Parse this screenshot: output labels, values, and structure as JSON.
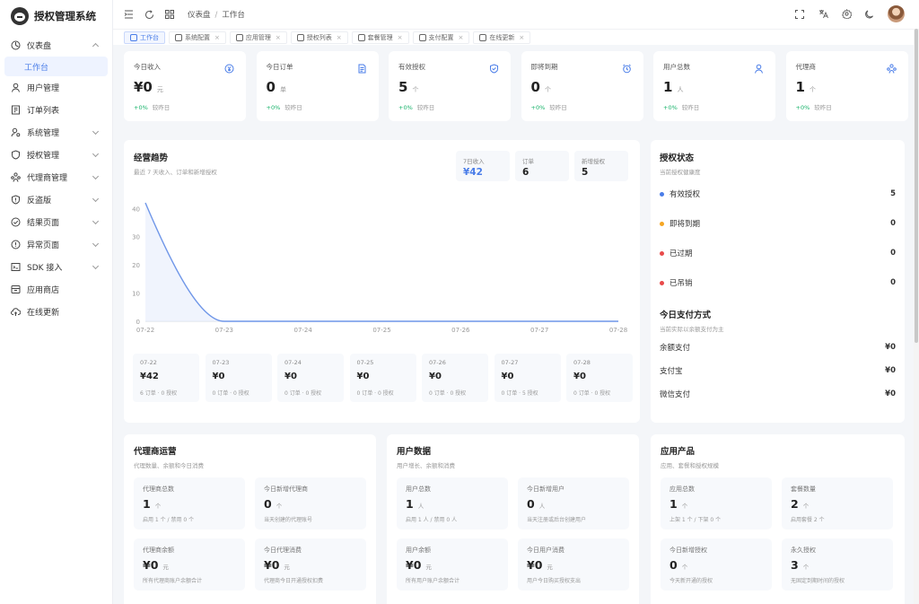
{
  "app": {
    "title": "授权管理系统"
  },
  "sidebar": {
    "items": [
      {
        "label": "仪表盘",
        "icon": "dashboard-icon",
        "expanded": true
      },
      {
        "label": "用户管理",
        "icon": "user-icon"
      },
      {
        "label": "订单列表",
        "icon": "order-icon"
      },
      {
        "label": "系统管理",
        "icon": "user-gear-icon",
        "expandable": true
      },
      {
        "label": "授权管理",
        "icon": "shield-icon",
        "expandable": true
      },
      {
        "label": "代理商管理",
        "icon": "agents-icon",
        "expandable": true
      },
      {
        "label": "反盗版",
        "icon": "shield-alert-icon",
        "expandable": true
      },
      {
        "label": "结果页面",
        "icon": "check-circle-icon",
        "expandable": true
      },
      {
        "label": "异常页面",
        "icon": "warning-circle-icon",
        "expandable": true
      },
      {
        "label": "SDK 接入",
        "icon": "sdk-icon",
        "expandable": true
      },
      {
        "label": "应用商店",
        "icon": "store-icon"
      },
      {
        "label": "在线更新",
        "icon": "cloud-icon"
      }
    ],
    "sub_active": "工作台"
  },
  "header": {
    "breadcrumb": [
      "仪表盘",
      "工作台"
    ]
  },
  "tabs": [
    {
      "label": "工作台",
      "active": true
    },
    {
      "label": "系统配置"
    },
    {
      "label": "应用管理"
    },
    {
      "label": "授权列表"
    },
    {
      "label": "套餐管理"
    },
    {
      "label": "支付配置"
    },
    {
      "label": "在线更新"
    }
  ],
  "stats": [
    {
      "label": "今日收入",
      "value": "¥0",
      "unit": "元",
      "trend": "+0%",
      "trend_label": "较昨日",
      "icon": "coin-icon"
    },
    {
      "label": "今日订单",
      "value": "0",
      "unit": "单",
      "trend": "+0%",
      "trend_label": "较昨日",
      "icon": "document-icon"
    },
    {
      "label": "有效授权",
      "value": "5",
      "unit": "个",
      "trend": "+0%",
      "trend_label": "较昨日",
      "icon": "shield-check-icon"
    },
    {
      "label": "即将到期",
      "value": "0",
      "unit": "个",
      "trend": "+0%",
      "trend_label": "较昨日",
      "icon": "alarm-icon"
    },
    {
      "label": "用户总数",
      "value": "1",
      "unit": "人",
      "trend": "+0%",
      "trend_label": "较昨日",
      "icon": "person-icon"
    },
    {
      "label": "代理商",
      "value": "1",
      "unit": "个",
      "trend": "+0%",
      "trend_label": "较昨日",
      "icon": "team-icon"
    }
  ],
  "trend": {
    "title": "经营趋势",
    "subtitle": "最近 7 天收入、订单和新增授权",
    "summary": [
      {
        "label": "7日收入",
        "value": "¥42",
        "highlight": true
      },
      {
        "label": "订单",
        "value": "6"
      },
      {
        "label": "新增授权",
        "value": "5"
      }
    ],
    "days": [
      {
        "date": "07-22",
        "value": "¥42",
        "meta": "6 订单 · 0 授权"
      },
      {
        "date": "07-23",
        "value": "¥0",
        "meta": "0 订单 · 0 授权"
      },
      {
        "date": "07-24",
        "value": "¥0",
        "meta": "0 订单 · 0 授权"
      },
      {
        "date": "07-25",
        "value": "¥0",
        "meta": "0 订单 · 0 授权"
      },
      {
        "date": "07-26",
        "value": "¥0",
        "meta": "0 订单 · 0 授权"
      },
      {
        "date": "07-27",
        "value": "¥0",
        "meta": "0 订单 · 5 授权"
      },
      {
        "date": "07-28",
        "value": "¥0",
        "meta": "0 订单 · 0 授权"
      }
    ]
  },
  "chart_data": {
    "type": "area",
    "x": [
      "07-22",
      "07-23",
      "07-24",
      "07-25",
      "07-26",
      "07-27",
      "07-28"
    ],
    "series": [
      {
        "values": [
          42,
          0,
          0,
          0,
          0,
          0,
          0
        ]
      }
    ],
    "yticks": [
      0,
      10,
      20,
      30,
      40
    ],
    "ylim": [
      0,
      42
    ],
    "color": "#6f96e8",
    "grid": false
  },
  "auth_status": {
    "title": "授权状态",
    "subtitle": "当前授权健康度",
    "items": [
      {
        "label": "有效授权",
        "value": "5",
        "color": "#4a7de8"
      },
      {
        "label": "即将到期",
        "value": "0",
        "color": "#f5a623"
      },
      {
        "label": "已过期",
        "value": "0",
        "color": "#e84a4a"
      },
      {
        "label": "已吊销",
        "value": "0",
        "color": "#e84a4a"
      }
    ]
  },
  "pay_methods": {
    "title": "今日支付方式",
    "subtitle": "当前实际以余额支付为主",
    "items": [
      {
        "label": "余额支付",
        "value": "¥0"
      },
      {
        "label": "支付宝",
        "value": "¥0"
      },
      {
        "label": "微信支付",
        "value": "¥0"
      }
    ]
  },
  "agent_ops": {
    "title": "代理商运营",
    "subtitle": "代理数量、余额和今日消费",
    "boxes": [
      {
        "label": "代理商总数",
        "value": "1",
        "unit": "个",
        "desc": "启用 1 个 / 禁用 0 个"
      },
      {
        "label": "今日新增代理商",
        "value": "0",
        "unit": "个",
        "desc": "当天创建的代理账号"
      },
      {
        "label": "代理商余额",
        "value": "¥0",
        "unit": "元",
        "desc": "所有代理商账户余额合计"
      },
      {
        "label": "今日代理消费",
        "value": "¥0",
        "unit": "元",
        "desc": "代理商今日开通授权扣费"
      }
    ]
  },
  "user_data": {
    "title": "用户数据",
    "subtitle": "用户增长、余额和消费",
    "boxes": [
      {
        "label": "用户总数",
        "value": "1",
        "unit": "人",
        "desc": "启用 1 人 / 禁用 0 人"
      },
      {
        "label": "今日新增用户",
        "value": "0",
        "unit": "人",
        "desc": "当天注册或后台创建用户"
      },
      {
        "label": "用户余额",
        "value": "¥0",
        "unit": "元",
        "desc": "所有用户账户余额合计"
      },
      {
        "label": "今日用户消费",
        "value": "¥0",
        "unit": "元",
        "desc": "用户今日购买授权支出"
      }
    ]
  },
  "products": {
    "title": "应用产品",
    "subtitle": "应用、套餐和授权规模",
    "boxes": [
      {
        "label": "应用总数",
        "value": "1",
        "unit": "个",
        "desc": "上架 1 个 / 下架 0 个"
      },
      {
        "label": "套餐数量",
        "value": "2",
        "unit": "个",
        "desc": "启用套餐 2 个"
      },
      {
        "label": "今日新增授权",
        "value": "0",
        "unit": "个",
        "desc": "今天新开通的授权"
      },
      {
        "label": "永久授权",
        "value": "3",
        "unit": "个",
        "desc": "无固定到期时间的授权"
      }
    ]
  }
}
